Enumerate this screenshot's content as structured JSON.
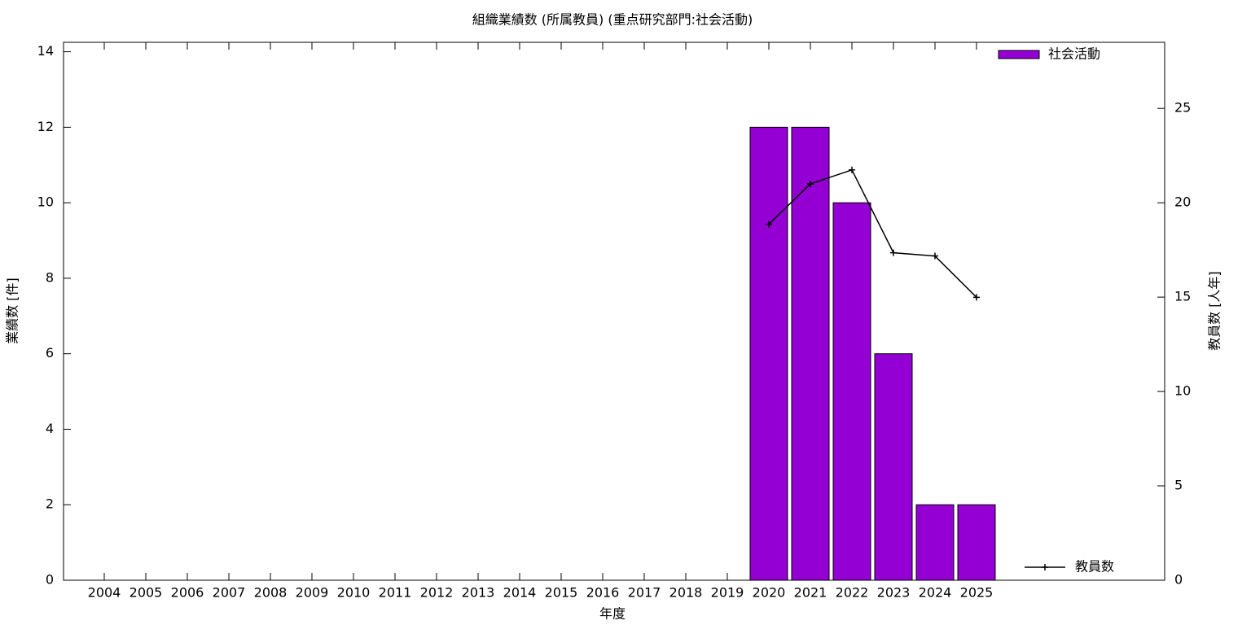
{
  "chart_data": {
    "type": "bar",
    "title": "組織業績数 (所属教員) (重点研究部門:社会活動)",
    "x_label": "年度",
    "y_label": "業績数 [件]",
    "y2_label": "教員数 [人年]",
    "categories": [
      "2004",
      "2005",
      "2006",
      "2007",
      "2008",
      "2009",
      "2010",
      "2011",
      "2012",
      "2013",
      "2014",
      "2015",
      "2016",
      "2017",
      "2018",
      "2019",
      "2020",
      "2021",
      "2022",
      "2023",
      "2024",
      "2025"
    ],
    "series": [
      {
        "name": "社会活動",
        "type": "bar",
        "color": "#9400d3",
        "values": [
          null,
          null,
          null,
          null,
          null,
          null,
          null,
          null,
          null,
          null,
          null,
          null,
          null,
          null,
          null,
          null,
          12,
          12,
          10,
          6,
          2,
          2
        ]
      },
      {
        "name": "教員数",
        "type": "line",
        "axis": "y2",
        "color": "#000000",
        "values": [
          null,
          null,
          null,
          null,
          null,
          null,
          null,
          null,
          null,
          null,
          null,
          null,
          null,
          null,
          null,
          null,
          18.86,
          21.0,
          21.74,
          17.35,
          17.18,
          14.99
        ]
      }
    ],
    "ylim": [
      0,
      14.25
    ],
    "yticks": [
      0,
      2,
      4,
      6,
      8,
      10,
      12,
      14
    ],
    "y2lim": [
      0,
      28.5
    ],
    "y2ticks": [
      0,
      5,
      10,
      15,
      20,
      25
    ]
  }
}
